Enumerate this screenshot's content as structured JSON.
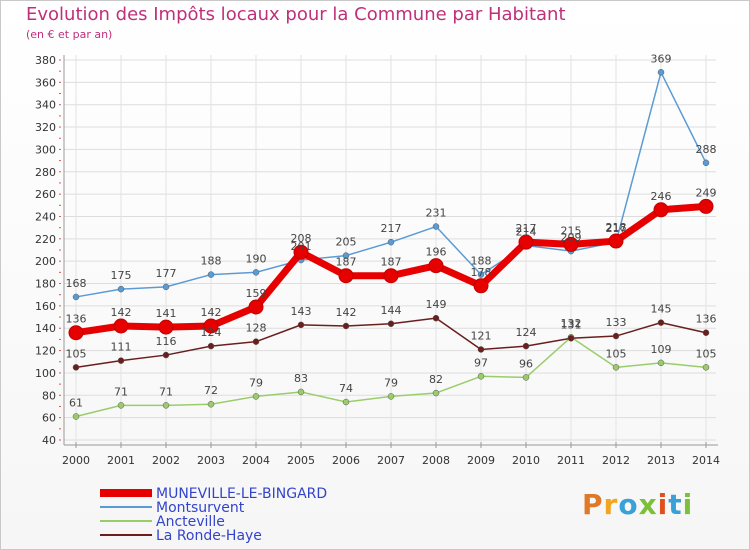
{
  "header": {
    "title": "Evolution des Impôts locaux pour la Commune par Habitant",
    "subtitle": "(en € et par an)"
  },
  "brand": {
    "text": "Proxiti",
    "colors": [
      "#e0782a",
      "#f2a51f",
      "#3aa0d8",
      "#7cbf3a",
      "#e0501e",
      "#3aa0d8",
      "#7cbf3a"
    ]
  },
  "chart_data": {
    "type": "line",
    "title": "Evolution des Impôts locaux pour la Commune par Habitant",
    "subtitle": "(en € et par an)",
    "xlabel": "",
    "ylabel": "",
    "x": [
      "2000",
      "2001",
      "2002",
      "2003",
      "2004",
      "2005",
      "2006",
      "2007",
      "2008",
      "2009",
      "2010",
      "2011",
      "2012",
      "2013",
      "2014"
    ],
    "ylim": [
      40,
      380
    ],
    "yticks": [
      40,
      60,
      80,
      100,
      120,
      140,
      160,
      180,
      200,
      220,
      240,
      260,
      280,
      300,
      320,
      340,
      360,
      380
    ],
    "grid": true,
    "legend_position": "bottom-left",
    "series": [
      {
        "name": "MUNEVILLE-LE-BINGARD",
        "color": "#e60000",
        "emphasis": true,
        "values": [
          136,
          142,
          141,
          142,
          159,
          208,
          187,
          187,
          196,
          178,
          217,
          215,
          218,
          246,
          249
        ],
        "labels": [
          "136",
          "142",
          "141",
          "142",
          "159",
          "208",
          "187",
          "187",
          "196",
          "178",
          "217",
          "215",
          "218",
          "246",
          "249"
        ]
      },
      {
        "name": "Montsurvent",
        "color": "#5b9bd5",
        "emphasis": false,
        "values": [
          168,
          175,
          177,
          188,
          190,
          201,
          205,
          217,
          231,
          188,
          214,
          209,
          217,
          369,
          288
        ],
        "labels": [
          "168",
          "175",
          "177",
          "188",
          "190",
          "201",
          "205",
          "217",
          "231",
          "188",
          "214",
          "209",
          "217",
          "369",
          "288"
        ]
      },
      {
        "name": "Ancteville",
        "color": "#9acd6a",
        "emphasis": false,
        "values": [
          61,
          71,
          71,
          72,
          79,
          83,
          74,
          79,
          82,
          97,
          96,
          132,
          105,
          109,
          105
        ],
        "labels": [
          "61",
          "71",
          "71",
          "72",
          "79",
          "83",
          "74",
          "79",
          "82",
          "97",
          "96",
          "132",
          "105",
          "109",
          "105"
        ]
      },
      {
        "name": "La Ronde-Haye",
        "color": "#6b1e1e",
        "emphasis": false,
        "values": [
          105,
          111,
          116,
          124,
          128,
          143,
          142,
          144,
          149,
          121,
          124,
          131,
          133,
          145,
          136
        ],
        "labels": [
          "105",
          "111",
          "116",
          "124",
          "128",
          "143",
          "142",
          "144",
          "149",
          "121",
          "124",
          "131",
          "133",
          "145",
          "136"
        ]
      }
    ]
  }
}
